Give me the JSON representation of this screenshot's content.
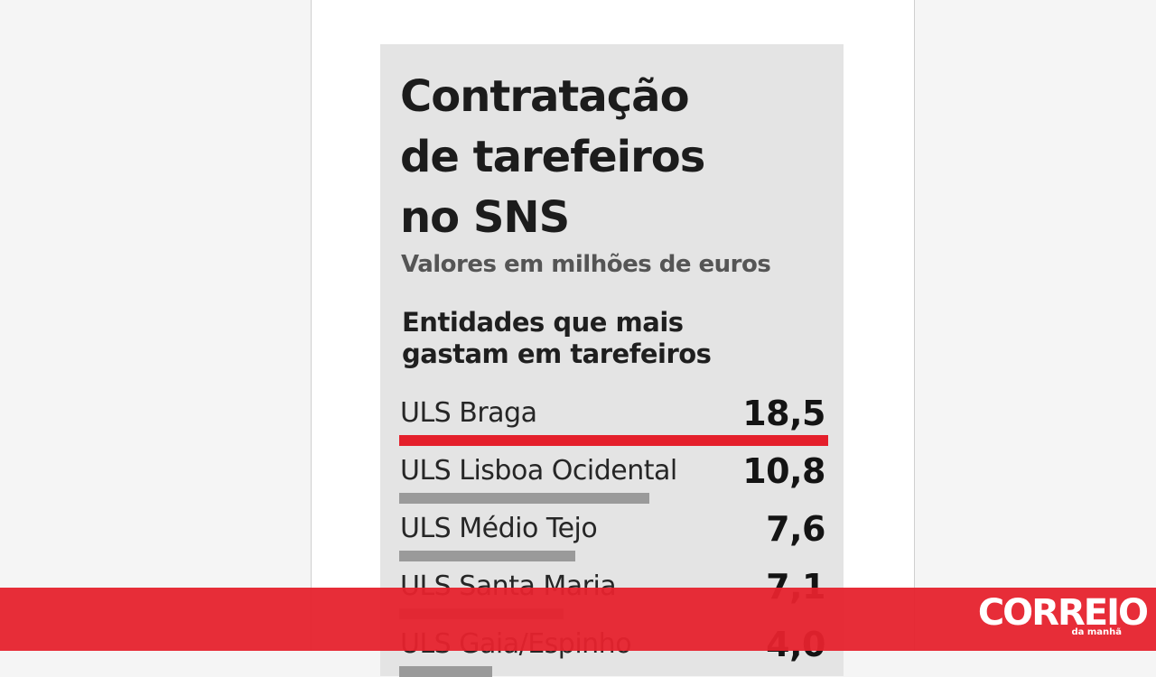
{
  "chart_data": {
    "type": "bar",
    "title": [
      "Contratação",
      "de tarefeiros",
      "no SNS"
    ],
    "subtitle": "Valores em milhões de euros",
    "section_title": [
      "Entidades que mais",
      "gastam em tarefeiros"
    ],
    "categories": [
      "ULS Braga",
      "ULS Lisboa Ocidental",
      "ULS Médio Tejo",
      "ULS Santa Maria",
      "ULS Gaia/Espinho"
    ],
    "values": [
      18.5,
      10.8,
      7.6,
      7.1,
      4.0
    ],
    "value_labels": [
      "18,5",
      "10,8",
      "7,6",
      "7,1",
      "4,0"
    ],
    "bar_colors": [
      "#e41f2b",
      "#9a9a9a",
      "#9a9a9a",
      "#9a9a9a",
      "#9a9a9a"
    ]
  },
  "footer": {
    "logo_text": "CORREIO",
    "logo_sub": "da manhã",
    "color": "#e6222d"
  }
}
